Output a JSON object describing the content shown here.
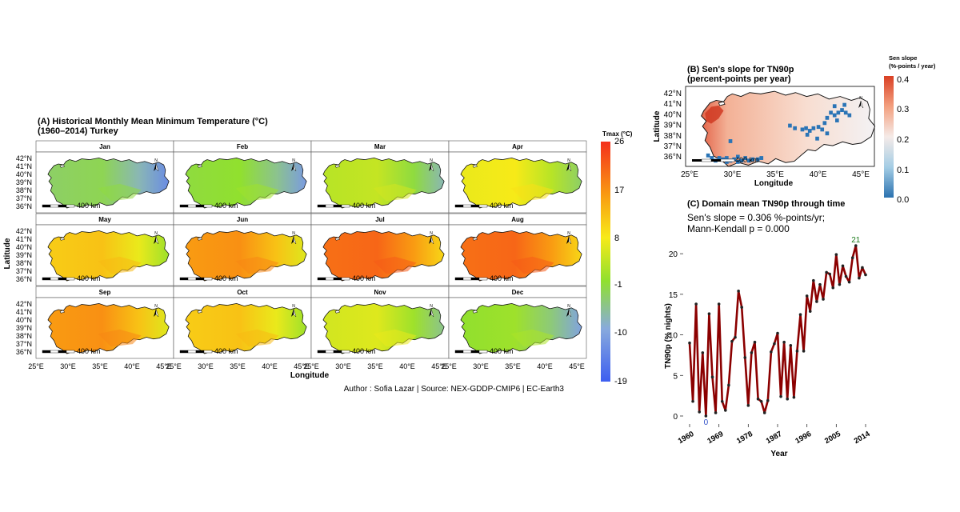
{
  "panel_a": {
    "title_line1": "(A) Historical Monthly Mean Minimum Temperature (°C)",
    "title_line2": "(1960–2014) Turkey",
    "xlabel": "Longitude",
    "ylabel": "Latitude",
    "months": [
      "Jan",
      "Feb",
      "Mar",
      "Apr",
      "May",
      "Jun",
      "Jul",
      "Aug",
      "Sep",
      "Oct",
      "Nov",
      "Dec"
    ],
    "month_values": [
      -5,
      -3,
      1,
      5,
      9,
      14,
      18,
      18,
      14,
      9,
      3,
      -2
    ],
    "lat_ticks": [
      "42°N",
      "41°N",
      "40°N",
      "39°N",
      "38°N",
      "37°N",
      "36°N"
    ],
    "lon_ticks": [
      "25°E",
      "30°E",
      "35°E",
      "40°E",
      "45°E"
    ],
    "scalebar_label": "400 km",
    "north_label": "N",
    "legend_title": "Tmax (°C)",
    "legend_ticks": [
      "26",
      "17",
      "8",
      "-1",
      "-10",
      "-19"
    ],
    "credit": "Author : Sofia Lazar | Source: NEX-GDDP-CMIP6 | EC-Earth3"
  },
  "panel_b": {
    "title_line1": "(B) Sen's slope for TN90p",
    "title_line2": "(percent-points per year)",
    "xlabel": "Longitude",
    "ylabel": "Latitude",
    "lat_ticks": [
      "42°N",
      "41°N",
      "40°N",
      "39°N",
      "38°N",
      "37°N",
      "36°N"
    ],
    "lon_ticks": [
      "25°E",
      "30°E",
      "35°E",
      "40°E",
      "45°E"
    ],
    "scalebar_label": "400 km",
    "legend_title_line1": "Sen slope",
    "legend_title_line2": "(%-points / year)",
    "legend_ticks": [
      "0.4",
      "0.3",
      "0.2",
      "0.1",
      "0.0"
    ]
  },
  "panel_c": {
    "title": "(C) Domain mean TN90p through time",
    "subtitle_line1": "Sen's slope = 0.306 %-points/yr;",
    "subtitle_line2": "Mann-Kendall p = 0.000",
    "xlabel": "Year",
    "ylabel": "TN90p (% nights)",
    "x_ticks": [
      "1960",
      "1969",
      "1978",
      "1987",
      "1996",
      "2005",
      "2014"
    ],
    "y_ticks": [
      "0",
      "5",
      "10",
      "15",
      "20"
    ],
    "max_label": "21",
    "min_label": "0"
  },
  "colors": {
    "series_line": "#8b0000",
    "point": "#222222",
    "max_label": "#1a7a1a",
    "min_label": "#3050c8"
  },
  "chart_data": [
    {
      "type": "heatmap",
      "title": "(A) Historical Monthly Mean Minimum Temperature (°C) (1960–2014) Turkey",
      "panels": [
        "Jan",
        "Feb",
        "Mar",
        "Apr",
        "May",
        "Jun",
        "Jul",
        "Aug",
        "Sep",
        "Oct",
        "Nov",
        "Dec"
      ],
      "xlabel": "Longitude",
      "ylabel": "Latitude",
      "xlim": [
        25,
        45
      ],
      "ylim": [
        35.8,
        42.5
      ],
      "color_range": [
        -19,
        26
      ],
      "legend_title": "Tmax (°C)"
    },
    {
      "type": "heatmap",
      "title": "(B) Sen's slope for TN90p (percent-points per year)",
      "xlabel": "Longitude",
      "ylabel": "Latitude",
      "xlim": [
        25,
        45
      ],
      "ylim": [
        35.8,
        42.5
      ],
      "color_range": [
        0.0,
        0.4
      ],
      "legend_title": "Sen slope (%-points / year)"
    },
    {
      "type": "line",
      "title": "(C) Domain mean TN90p through time",
      "xlabel": "Year",
      "ylabel": "TN90p (% nights)",
      "xlim": [
        1960,
        2014
      ],
      "ylim": [
        0,
        21
      ],
      "grid": false,
      "series": [
        {
          "x": [
            1960,
            1961,
            1962,
            1963,
            1964,
            1965,
            1966,
            1967,
            1968,
            1969,
            1970,
            1971,
            1972,
            1973,
            1974,
            1975,
            1976,
            1977,
            1978,
            1979,
            1980,
            1981,
            1982,
            1983,
            1984,
            1985,
            1986,
            1987,
            1988,
            1989,
            1990,
            1991,
            1992,
            1993,
            1994,
            1995,
            1996,
            1997,
            1998,
            1999,
            2000,
            2001,
            2002,
            2003,
            2004,
            2005,
            2006,
            2007,
            2008,
            2009,
            2010,
            2011,
            2012,
            2013,
            2014
          ],
          "values": [
            9.0,
            1.8,
            13.8,
            0.5,
            7.8,
            0.0,
            12.6,
            4.8,
            0.4,
            13.8,
            1.8,
            0.7,
            3.8,
            9.2,
            9.7,
            15.4,
            13.4,
            7.2,
            1.3,
            7.8,
            9.1,
            2.1,
            1.8,
            0.4,
            1.9,
            7.9,
            8.9,
            10.2,
            2.4,
            9.1,
            2.1,
            8.7,
            2.3,
            8.0,
            12.5,
            8.0,
            14.8,
            12.9,
            16.7,
            14.1,
            16.2,
            14.4,
            17.7,
            17.5,
            15.8,
            19.9,
            16.2,
            18.5,
            17.2,
            16.5,
            19.5,
            21.0,
            17.0,
            18.3,
            17.4
          ]
        }
      ],
      "annotations": [
        {
          "label": "21",
          "x": 2011
        },
        {
          "label": "0",
          "x": 1965
        }
      ]
    }
  ]
}
